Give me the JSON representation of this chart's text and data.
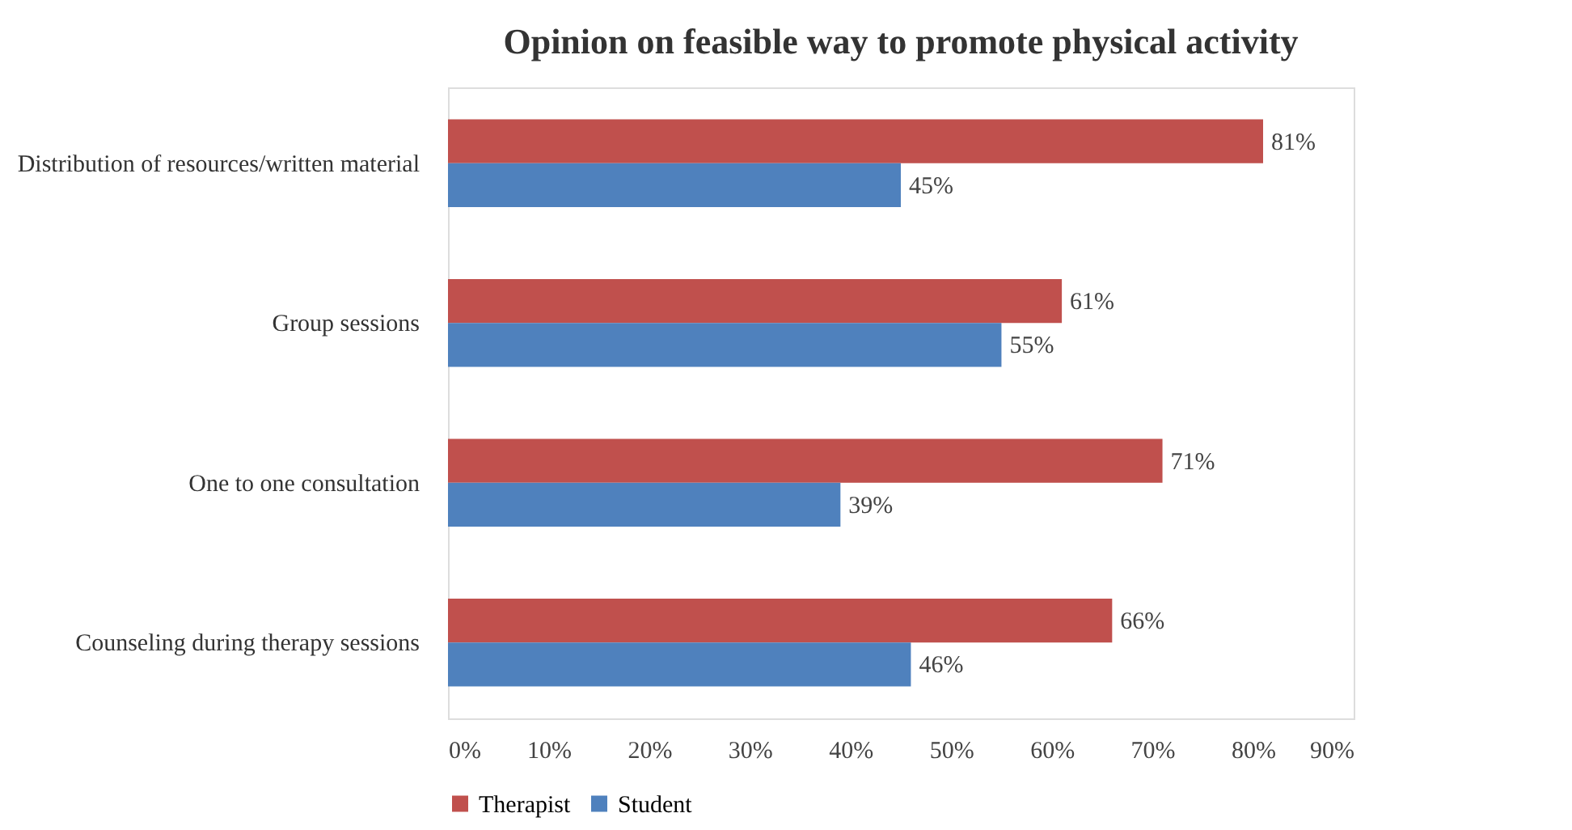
{
  "chart_data": {
    "type": "bar",
    "orientation": "horizontal",
    "title": "Opinion on feasible way to promote physical activity",
    "categories": [
      "Distribution of resources/written material",
      "Group sessions",
      "One to one consultation",
      "Counseling during therapy sessions"
    ],
    "series": [
      {
        "name": "Therapist",
        "color": "#c0504d",
        "values": [
          81,
          61,
          71,
          66
        ],
        "value_labels": [
          "81%",
          "61%",
          "71%",
          "66%"
        ]
      },
      {
        "name": "Student",
        "color": "#4f81bd",
        "values": [
          45,
          55,
          39,
          46
        ],
        "value_labels": [
          "45%",
          "55%",
          "39%",
          "46%"
        ]
      }
    ],
    "xlim": [
      0,
      90
    ],
    "xticks": [
      {
        "value": 0,
        "label": "0%"
      },
      {
        "value": 10,
        "label": "10%"
      },
      {
        "value": 20,
        "label": "20%"
      },
      {
        "value": 30,
        "label": "30%"
      },
      {
        "value": 40,
        "label": "40%"
      },
      {
        "value": 50,
        "label": "50%"
      },
      {
        "value": 60,
        "label": "60%"
      },
      {
        "value": 70,
        "label": "70%"
      },
      {
        "value": 80,
        "label": "80%"
      },
      {
        "value": 90,
        "label": "90%"
      }
    ],
    "grid": false,
    "legend": "bottom"
  }
}
